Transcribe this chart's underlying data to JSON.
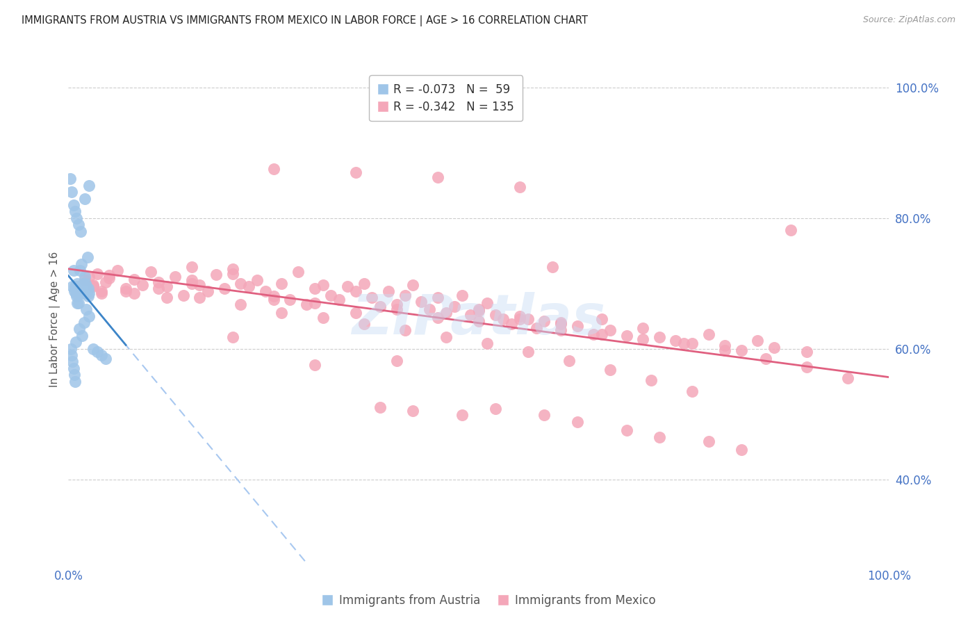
{
  "title": "IMMIGRANTS FROM AUSTRIA VS IMMIGRANTS FROM MEXICO IN LABOR FORCE | AGE > 16 CORRELATION CHART",
  "source": "Source: ZipAtlas.com",
  "ylabel": "In Labor Force | Age > 16",
  "legend_austria": "Immigrants from Austria",
  "legend_mexico": "Immigrants from Mexico",
  "R_austria": -0.073,
  "N_austria": 59,
  "R_mexico": -0.342,
  "N_mexico": 135,
  "austria_color": "#9fc5e8",
  "austria_edge_color": "#7bafd4",
  "mexico_color": "#f4a7b9",
  "mexico_edge_color": "#e88fa5",
  "austria_line_color": "#3d85c8",
  "mexico_line_color": "#e06080",
  "austria_dash_color": "#a8c8f0",
  "background_color": "#ffffff",
  "grid_color": "#cccccc",
  "title_color": "#222222",
  "axis_label_color": "#4472c4",
  "right_tick_color": "#4472c4",
  "watermark_text": "ZIPatlas",
  "watermark_color": "#c8ddf5",
  "xlim": [
    0,
    1
  ],
  "ylim": [
    0.27,
    1.02
  ],
  "yticks": [
    0.4,
    0.6,
    0.8,
    1.0
  ],
  "ytick_labels": [
    "40.0%",
    "60.0%",
    "80.0%",
    "100.0%"
  ],
  "xticks": [
    0.0,
    1.0
  ],
  "xtick_labels": [
    "0.0%",
    "100.0%"
  ],
  "austria_x": [
    0.005,
    0.007,
    0.008,
    0.009,
    0.01,
    0.011,
    0.012,
    0.013,
    0.014,
    0.015,
    0.016,
    0.017,
    0.018,
    0.019,
    0.02,
    0.021,
    0.022,
    0.023,
    0.024,
    0.025,
    0.006,
    0.01,
    0.012,
    0.015,
    0.018,
    0.02,
    0.022,
    0.025,
    0.008,
    0.014,
    0.016,
    0.019,
    0.023,
    0.011,
    0.013,
    0.017,
    0.021,
    0.024,
    0.009,
    0.012,
    0.003,
    0.004,
    0.005,
    0.006,
    0.007,
    0.008,
    0.03,
    0.035,
    0.04,
    0.045,
    0.002,
    0.004,
    0.006,
    0.008,
    0.01,
    0.012,
    0.015,
    0.02,
    0.025
  ],
  "austria_y": [
    0.695,
    0.688,
    0.692,
    0.685,
    0.69,
    0.7,
    0.695,
    0.688,
    0.692,
    0.685,
    0.69,
    0.695,
    0.688,
    0.692,
    0.685,
    0.7,
    0.695,
    0.688,
    0.692,
    0.685,
    0.72,
    0.68,
    0.67,
    0.69,
    0.7,
    0.71,
    0.66,
    0.65,
    0.695,
    0.72,
    0.73,
    0.64,
    0.74,
    0.67,
    0.63,
    0.62,
    0.69,
    0.68,
    0.61,
    0.688,
    0.6,
    0.59,
    0.58,
    0.57,
    0.56,
    0.55,
    0.6,
    0.595,
    0.59,
    0.585,
    0.86,
    0.84,
    0.82,
    0.81,
    0.8,
    0.79,
    0.78,
    0.83,
    0.85
  ],
  "mexico_x": [
    0.02,
    0.025,
    0.03,
    0.035,
    0.04,
    0.045,
    0.05,
    0.06,
    0.07,
    0.08,
    0.09,
    0.1,
    0.11,
    0.12,
    0.13,
    0.14,
    0.15,
    0.16,
    0.17,
    0.18,
    0.19,
    0.2,
    0.21,
    0.22,
    0.23,
    0.24,
    0.25,
    0.26,
    0.27,
    0.28,
    0.29,
    0.3,
    0.31,
    0.32,
    0.33,
    0.34,
    0.35,
    0.36,
    0.37,
    0.38,
    0.39,
    0.4,
    0.41,
    0.42,
    0.43,
    0.44,
    0.45,
    0.46,
    0.47,
    0.48,
    0.49,
    0.5,
    0.51,
    0.52,
    0.53,
    0.54,
    0.55,
    0.56,
    0.57,
    0.58,
    0.59,
    0.6,
    0.62,
    0.64,
    0.65,
    0.66,
    0.68,
    0.7,
    0.72,
    0.74,
    0.76,
    0.78,
    0.8,
    0.82,
    0.84,
    0.86,
    0.88,
    0.9,
    0.03,
    0.05,
    0.08,
    0.12,
    0.15,
    0.2,
    0.25,
    0.3,
    0.35,
    0.4,
    0.45,
    0.5,
    0.55,
    0.6,
    0.65,
    0.7,
    0.75,
    0.8,
    0.85,
    0.9,
    0.95,
    0.04,
    0.07,
    0.11,
    0.16,
    0.21,
    0.26,
    0.31,
    0.36,
    0.41,
    0.46,
    0.51,
    0.56,
    0.61,
    0.66,
    0.71,
    0.76,
    0.55,
    0.45,
    0.35,
    0.25,
    0.15,
    0.6,
    0.5,
    0.4,
    0.3,
    0.2,
    0.38,
    0.42,
    0.48,
    0.52,
    0.58,
    0.62,
    0.68,
    0.72,
    0.78,
    0.82
  ],
  "mexico_y": [
    0.705,
    0.71,
    0.698,
    0.715,
    0.688,
    0.702,
    0.712,
    0.72,
    0.692,
    0.706,
    0.698,
    0.718,
    0.702,
    0.695,
    0.71,
    0.682,
    0.705,
    0.698,
    0.688,
    0.714,
    0.692,
    0.722,
    0.7,
    0.695,
    0.705,
    0.688,
    0.68,
    0.7,
    0.675,
    0.718,
    0.668,
    0.692,
    0.698,
    0.682,
    0.675,
    0.695,
    0.688,
    0.7,
    0.678,
    0.665,
    0.688,
    0.668,
    0.682,
    0.698,
    0.672,
    0.66,
    0.678,
    0.655,
    0.665,
    0.682,
    0.652,
    0.66,
    0.67,
    0.652,
    0.645,
    0.638,
    0.65,
    0.645,
    0.632,
    0.642,
    0.725,
    0.64,
    0.635,
    0.622,
    0.645,
    0.628,
    0.62,
    0.632,
    0.618,
    0.612,
    0.608,
    0.622,
    0.605,
    0.598,
    0.612,
    0.602,
    0.782,
    0.595,
    0.695,
    0.708,
    0.685,
    0.678,
    0.7,
    0.715,
    0.675,
    0.67,
    0.655,
    0.66,
    0.648,
    0.658,
    0.645,
    0.638,
    0.622,
    0.615,
    0.608,
    0.598,
    0.585,
    0.572,
    0.555,
    0.685,
    0.688,
    0.692,
    0.678,
    0.668,
    0.655,
    0.648,
    0.638,
    0.628,
    0.618,
    0.608,
    0.595,
    0.582,
    0.568,
    0.552,
    0.535,
    0.848,
    0.862,
    0.87,
    0.875,
    0.725,
    0.628,
    0.642,
    0.582,
    0.575,
    0.618,
    0.51,
    0.505,
    0.498,
    0.508,
    0.498,
    0.488,
    0.475,
    0.465,
    0.458,
    0.445
  ]
}
